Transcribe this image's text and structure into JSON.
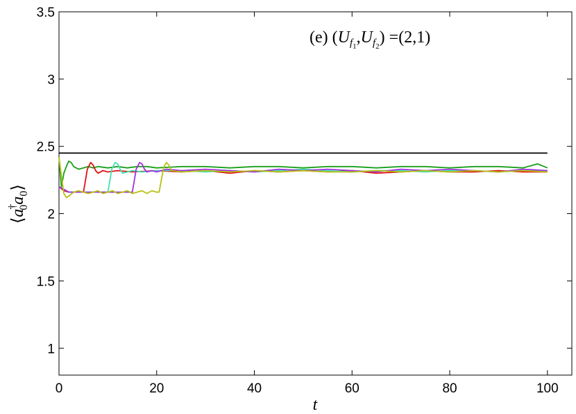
{
  "chart_data": {
    "type": "line",
    "annotation": {
      "prefix": "(e) (",
      "u": "U",
      "f": "f",
      "sub1": "1",
      "sub2": "2",
      "sep": ",",
      "suffix": ") =(2,1)"
    },
    "xlabel": "t",
    "ylabel": {
      "open": "⟨",
      "a1": "a",
      "dagger": "†",
      "sub1": "0",
      "a2": "a",
      "sub2": "0",
      "close": "⟩"
    },
    "xlim": [
      0,
      105
    ],
    "ylim": [
      0.8,
      3.5
    ],
    "xticks": [
      0,
      20,
      40,
      60,
      80,
      100
    ],
    "yticks": [
      1,
      1.5,
      2,
      2.5,
      3,
      3.5
    ],
    "xtick_labels": [
      "0",
      "20",
      "40",
      "60",
      "80",
      "100"
    ],
    "ytick_labels": [
      "1",
      "1.5",
      "2",
      "2.5",
      "3",
      "3.5"
    ],
    "grid": false,
    "series": [
      {
        "color": "#000000",
        "x": [
          0,
          100
        ],
        "y": [
          2.45,
          2.45
        ]
      },
      {
        "color": "#1a9e1a",
        "x": [
          0,
          0.5,
          1,
          1.5,
          2,
          2.5,
          3,
          4,
          5,
          6,
          7,
          8,
          10,
          12,
          14,
          16,
          18,
          20,
          25,
          30,
          35,
          40,
          45,
          50,
          55,
          60,
          65,
          70,
          75,
          80,
          85,
          90,
          95,
          98,
          100
        ],
        "y": [
          2.42,
          2.2,
          2.3,
          2.35,
          2.39,
          2.38,
          2.35,
          2.33,
          2.34,
          2.35,
          2.34,
          2.35,
          2.34,
          2.35,
          2.34,
          2.35,
          2.35,
          2.34,
          2.35,
          2.35,
          2.34,
          2.35,
          2.35,
          2.34,
          2.35,
          2.35,
          2.34,
          2.35,
          2.35,
          2.34,
          2.35,
          2.35,
          2.34,
          2.37,
          2.34
        ]
      },
      {
        "color": "#e01010",
        "x": [
          0,
          1,
          2,
          3,
          4,
          5,
          5.3,
          5.8,
          6.5,
          7,
          7.5,
          8,
          9,
          10,
          12,
          15,
          20,
          25,
          30,
          35,
          40,
          45,
          50,
          55,
          60,
          65,
          70,
          75,
          80,
          85,
          90,
          95,
          100
        ],
        "y": [
          2.2,
          2.17,
          2.16,
          2.16,
          2.16,
          2.16,
          2.22,
          2.33,
          2.38,
          2.36,
          2.32,
          2.3,
          2.32,
          2.31,
          2.32,
          2.31,
          2.32,
          2.31,
          2.32,
          2.3,
          2.32,
          2.31,
          2.32,
          2.31,
          2.32,
          2.3,
          2.31,
          2.32,
          2.31,
          2.31,
          2.32,
          2.31,
          2.31
        ]
      },
      {
        "color": "#40e0b0",
        "x": [
          0,
          2,
          4,
          6,
          8,
          10,
          10.3,
          10.8,
          11.5,
          12,
          12.5,
          13,
          14,
          15,
          17,
          20,
          25,
          30,
          35,
          40,
          45,
          50,
          55,
          60,
          65,
          70,
          75,
          80,
          85,
          90,
          95,
          100
        ],
        "y": [
          2.2,
          2.16,
          2.16,
          2.16,
          2.16,
          2.16,
          2.22,
          2.33,
          2.38,
          2.37,
          2.33,
          2.3,
          2.31,
          2.32,
          2.31,
          2.32,
          2.32,
          2.31,
          2.32,
          2.31,
          2.32,
          2.33,
          2.32,
          2.31,
          2.32,
          2.32,
          2.31,
          2.32,
          2.32,
          2.31,
          2.32,
          2.32
        ]
      },
      {
        "color": "#a030e0",
        "x": [
          0,
          2,
          4,
          6,
          8,
          10,
          12,
          14,
          15,
          15.3,
          15.8,
          16.5,
          17,
          17.5,
          18,
          19,
          20,
          22,
          25,
          30,
          35,
          40,
          45,
          50,
          55,
          60,
          65,
          70,
          75,
          80,
          85,
          90,
          95,
          100
        ],
        "y": [
          2.2,
          2.16,
          2.16,
          2.16,
          2.16,
          2.16,
          2.16,
          2.16,
          2.16,
          2.22,
          2.33,
          2.38,
          2.37,
          2.33,
          2.31,
          2.32,
          2.31,
          2.33,
          2.32,
          2.33,
          2.32,
          2.31,
          2.33,
          2.32,
          2.33,
          2.32,
          2.31,
          2.33,
          2.32,
          2.33,
          2.32,
          2.31,
          2.33,
          2.32
        ]
      },
      {
        "color": "#b8c010",
        "x": [
          0,
          0.5,
          1,
          1.5,
          2,
          3,
          4,
          5,
          6,
          7,
          8,
          9,
          10,
          11,
          12,
          13,
          14,
          15,
          16,
          17,
          18,
          19,
          20,
          20.5,
          21,
          21.5,
          22,
          22.5,
          23,
          25,
          30,
          35,
          40,
          45,
          50,
          55,
          60,
          65,
          70,
          75,
          80,
          85,
          90,
          95,
          100
        ],
        "y": [
          2.42,
          2.28,
          2.15,
          2.12,
          2.13,
          2.16,
          2.17,
          2.16,
          2.15,
          2.16,
          2.17,
          2.15,
          2.16,
          2.17,
          2.15,
          2.16,
          2.17,
          2.15,
          2.16,
          2.17,
          2.15,
          2.17,
          2.16,
          2.16,
          2.26,
          2.35,
          2.38,
          2.36,
          2.32,
          2.31,
          2.32,
          2.31,
          2.32,
          2.31,
          2.32,
          2.31,
          2.31,
          2.32,
          2.31,
          2.32,
          2.31,
          2.32,
          2.31,
          2.32,
          2.31
        ]
      }
    ]
  }
}
